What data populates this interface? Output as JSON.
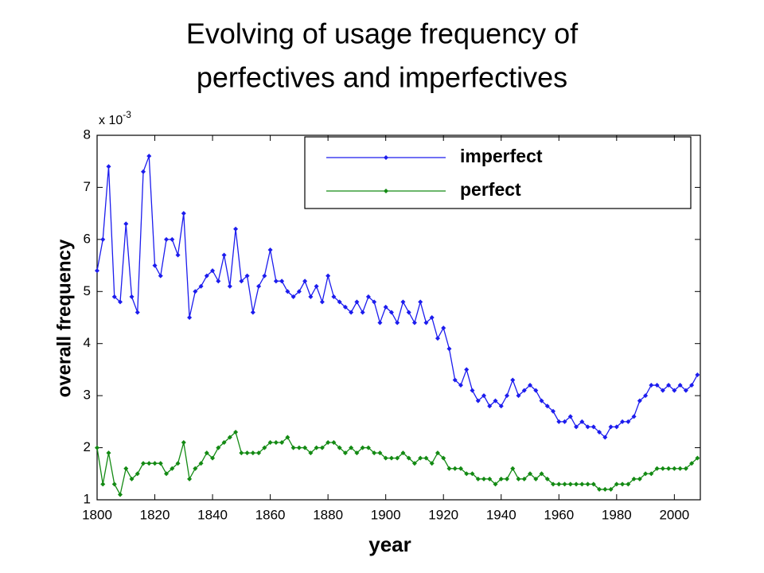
{
  "chart_data": {
    "type": "line",
    "title_lines": [
      "Evolving of usage frequency of",
      "perfectives and imperfectives"
    ],
    "xlabel": "year",
    "ylabel": "overall frequency",
    "y_scale_base": "x 10",
    "y_scale_exponent": "-3",
    "x": [
      1800,
      1802,
      1804,
      1806,
      1808,
      1810,
      1812,
      1814,
      1816,
      1818,
      1820,
      1822,
      1824,
      1826,
      1828,
      1830,
      1832,
      1834,
      1836,
      1838,
      1840,
      1842,
      1844,
      1846,
      1848,
      1850,
      1852,
      1854,
      1856,
      1858,
      1860,
      1862,
      1864,
      1866,
      1868,
      1870,
      1872,
      1874,
      1876,
      1878,
      1880,
      1882,
      1884,
      1886,
      1888,
      1890,
      1892,
      1894,
      1896,
      1898,
      1900,
      1902,
      1904,
      1906,
      1908,
      1910,
      1912,
      1914,
      1916,
      1918,
      1920,
      1922,
      1924,
      1926,
      1928,
      1930,
      1932,
      1934,
      1936,
      1938,
      1940,
      1942,
      1944,
      1946,
      1948,
      1950,
      1952,
      1954,
      1956,
      1958,
      1960,
      1962,
      1964,
      1966,
      1968,
      1970,
      1972,
      1974,
      1976,
      1978,
      1980,
      1982,
      1984,
      1986,
      1988,
      1990,
      1992,
      1994,
      1996,
      1998,
      2000,
      2002,
      2004,
      2006,
      2008
    ],
    "series": [
      {
        "name": "imperfect",
        "color": "#1c1cee",
        "values": [
          5.4,
          6.0,
          7.4,
          4.9,
          4.8,
          6.3,
          4.9,
          4.6,
          7.3,
          7.6,
          5.5,
          5.3,
          6.0,
          6.0,
          5.7,
          6.5,
          4.5,
          5.0,
          5.1,
          5.3,
          5.4,
          5.2,
          5.7,
          5.1,
          6.2,
          5.2,
          5.3,
          4.6,
          5.1,
          5.3,
          5.8,
          5.2,
          5.2,
          5.0,
          4.9,
          5.0,
          5.2,
          4.9,
          5.1,
          4.8,
          5.3,
          4.9,
          4.8,
          4.7,
          4.6,
          4.8,
          4.6,
          4.9,
          4.8,
          4.4,
          4.7,
          4.6,
          4.4,
          4.8,
          4.6,
          4.4,
          4.8,
          4.4,
          4.5,
          4.1,
          4.3,
          3.9,
          3.3,
          3.2,
          3.5,
          3.1,
          2.9,
          3.0,
          2.8,
          2.9,
          2.8,
          3.0,
          3.3,
          3.0,
          3.1,
          3.2,
          3.1,
          2.9,
          2.8,
          2.7,
          2.5,
          2.5,
          2.6,
          2.4,
          2.5,
          2.4,
          2.4,
          2.3,
          2.2,
          2.4,
          2.4,
          2.5,
          2.5,
          2.6,
          2.9,
          3.0,
          3.2,
          3.2,
          3.1,
          3.2,
          3.1,
          3.2,
          3.1,
          3.2,
          3.4
        ]
      },
      {
        "name": "perfect",
        "color": "#138a13",
        "values": [
          2.0,
          1.3,
          1.9,
          1.3,
          1.1,
          1.6,
          1.4,
          1.5,
          1.7,
          1.7,
          1.7,
          1.7,
          1.5,
          1.6,
          1.7,
          2.1,
          1.4,
          1.6,
          1.7,
          1.9,
          1.8,
          2.0,
          2.1,
          2.2,
          2.3,
          1.9,
          1.9,
          1.9,
          1.9,
          2.0,
          2.1,
          2.1,
          2.1,
          2.2,
          2.0,
          2.0,
          2.0,
          1.9,
          2.0,
          2.0,
          2.1,
          2.1,
          2.0,
          1.9,
          2.0,
          1.9,
          2.0,
          2.0,
          1.9,
          1.9,
          1.8,
          1.8,
          1.8,
          1.9,
          1.8,
          1.7,
          1.8,
          1.8,
          1.7,
          1.9,
          1.8,
          1.6,
          1.6,
          1.6,
          1.5,
          1.5,
          1.4,
          1.4,
          1.4,
          1.3,
          1.4,
          1.4,
          1.6,
          1.4,
          1.4,
          1.5,
          1.4,
          1.5,
          1.4,
          1.3,
          1.3,
          1.3,
          1.3,
          1.3,
          1.3,
          1.3,
          1.3,
          1.2,
          1.2,
          1.2,
          1.3,
          1.3,
          1.3,
          1.4,
          1.4,
          1.5,
          1.5,
          1.6,
          1.6,
          1.6,
          1.6,
          1.6,
          1.6,
          1.7,
          1.8
        ]
      }
    ],
    "xlim": [
      1800,
      2009
    ],
    "xticks": [
      1800,
      1820,
      1840,
      1860,
      1880,
      1900,
      1920,
      1940,
      1960,
      1980,
      2000
    ],
    "ylim": [
      1,
      8
    ],
    "yticks": [
      1,
      2,
      3,
      4,
      5,
      6,
      7,
      8
    ],
    "legend": "upper right"
  }
}
